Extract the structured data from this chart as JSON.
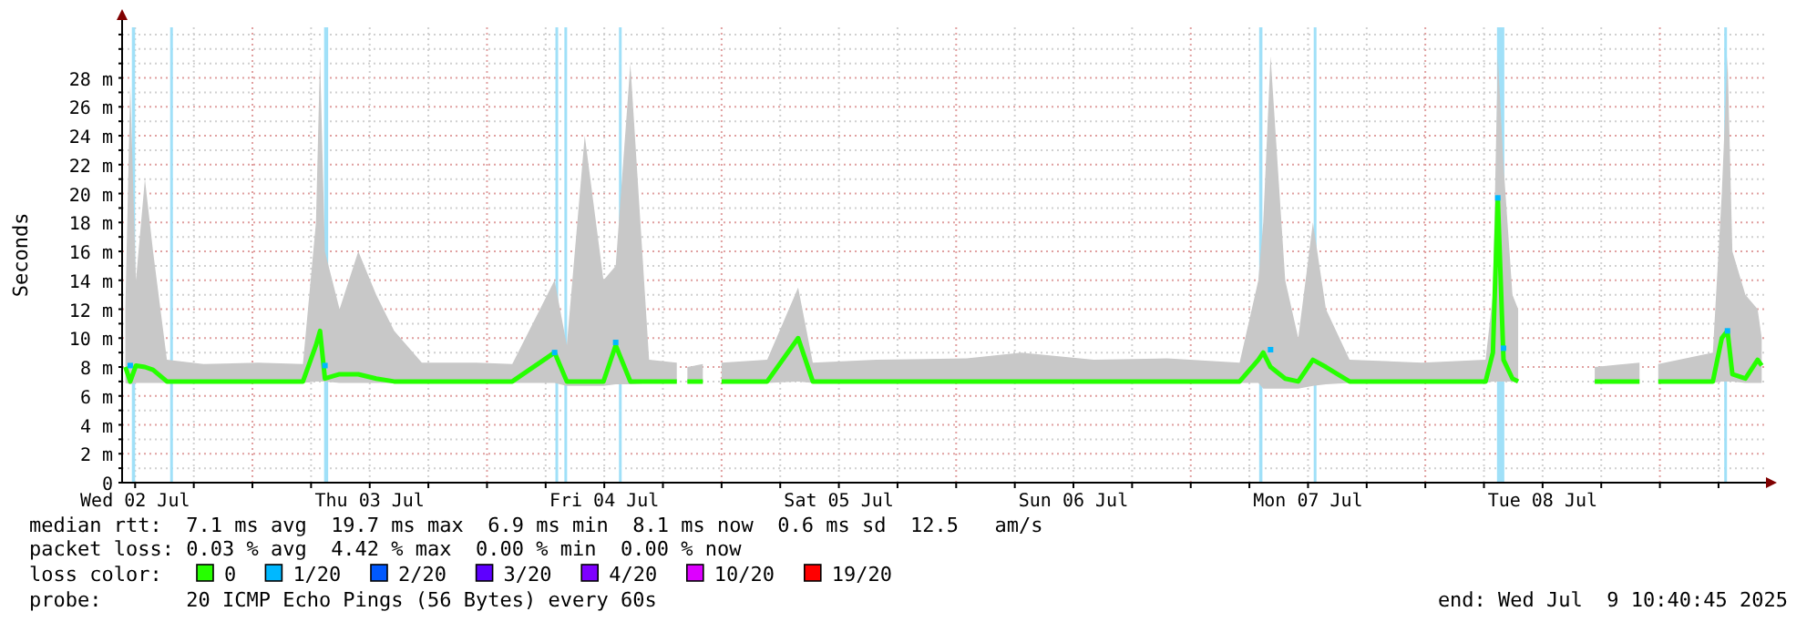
{
  "chart_data": {
    "type": "line",
    "ylabel": "Seconds",
    "legend_title": "loss color:",
    "legend": "bottom",
    "grid": true,
    "xlim": [
      "2025-07-02T10:40",
      "2025-07-09T10:40"
    ],
    "xticks": [
      {
        "value": "2025-07-02T12:00",
        "label": "Wed 02 Jul"
      },
      {
        "value": "2025-07-02T18:00",
        "label": null
      },
      {
        "value": "2025-07-03T00:00",
        "label": null
      },
      {
        "value": "2025-07-03T06:00",
        "label": null
      },
      {
        "value": "2025-07-03T12:00",
        "label": "Thu 03 Jul"
      },
      {
        "value": "2025-07-03T18:00",
        "label": null
      },
      {
        "value": "2025-07-04T00:00",
        "label": null
      },
      {
        "value": "2025-07-04T06:00",
        "label": null
      },
      {
        "value": "2025-07-04T12:00",
        "label": "Fri 04 Jul"
      },
      {
        "value": "2025-07-04T18:00",
        "label": null
      },
      {
        "value": "2025-07-05T00:00",
        "label": null
      },
      {
        "value": "2025-07-05T06:00",
        "label": null
      },
      {
        "value": "2025-07-05T12:00",
        "label": "Sat 05 Jul"
      },
      {
        "value": "2025-07-05T18:00",
        "label": null
      },
      {
        "value": "2025-07-06T00:00",
        "label": null
      },
      {
        "value": "2025-07-06T06:00",
        "label": null
      },
      {
        "value": "2025-07-06T12:00",
        "label": "Sun 06 Jul"
      },
      {
        "value": "2025-07-06T18:00",
        "label": null
      },
      {
        "value": "2025-07-07T00:00",
        "label": null
      },
      {
        "value": "2025-07-07T06:00",
        "label": null
      },
      {
        "value": "2025-07-07T12:00",
        "label": "Mon 07 Jul"
      },
      {
        "value": "2025-07-07T18:00",
        "label": null
      },
      {
        "value": "2025-07-08T00:00",
        "label": null
      },
      {
        "value": "2025-07-08T06:00",
        "label": null
      },
      {
        "value": "2025-07-08T12:00",
        "label": "Tue 08 Jul"
      },
      {
        "value": "2025-07-08T18:00",
        "label": null
      },
      {
        "value": "2025-07-09T00:00",
        "label": null
      },
      {
        "value": "2025-07-09T06:00",
        "label": null
      }
    ],
    "ylim": [
      0,
      31.5
    ],
    "yticks": [
      0,
      {
        "value": 1,
        "label": null
      },
      {
        "value": 2,
        "label": "2 m"
      },
      {
        "value": 3,
        "label": null
      },
      {
        "value": 4,
        "label": "4 m"
      },
      {
        "value": 5,
        "label": null
      },
      {
        "value": 6,
        "label": "6 m"
      },
      {
        "value": 7,
        "label": null
      },
      {
        "value": 8,
        "label": "8 m"
      },
      {
        "value": 9,
        "label": null
      },
      {
        "value": 10,
        "label": "10 m"
      },
      {
        "value": 11,
        "label": null
      },
      {
        "value": 12,
        "label": "12 m"
      },
      {
        "value": 13,
        "label": null
      },
      {
        "value": 14,
        "label": "14 m"
      },
      {
        "value": 15,
        "label": null
      },
      {
        "value": 16,
        "label": "16 m"
      },
      {
        "value": 17,
        "label": null
      },
      {
        "value": 18,
        "label": "18 m"
      },
      {
        "value": 19,
        "label": null
      },
      {
        "value": 20,
        "label": "20 m"
      },
      {
        "value": 21,
        "label": null
      },
      {
        "value": 22,
        "label": "22 m"
      },
      {
        "value": 23,
        "label": null
      },
      {
        "value": 24,
        "label": "24 m"
      },
      {
        "value": 25,
        "label": null
      },
      {
        "value": 26,
        "label": "26 m"
      },
      {
        "value": 27,
        "label": null
      },
      {
        "value": 28,
        "label": "28 m"
      },
      {
        "value": 29,
        "label": null
      },
      {
        "value": 30,
        "label": null
      },
      {
        "value": 31,
        "label": null
      }
    ],
    "series": [
      {
        "name": "0",
        "type": "line",
        "color": "#26ff00",
        "x": [
          "2025-07-02T11:00",
          "2025-07-02T11:30",
          "2025-07-02T12:05",
          "2025-07-02T13:00",
          "2025-07-02T13:50",
          "2025-07-02T15:15",
          "2025-07-02T19:00",
          "2025-07-03T00:35",
          "2025-07-03T05:10",
          "2025-07-03T06:30",
          "2025-07-03T06:55",
          "2025-07-03T07:25",
          "2025-07-03T08:55",
          "2025-07-03T10:50",
          "2025-07-03T12:40",
          "2025-07-03T14:30",
          "2025-07-03T17:20",
          "2025-07-03T22:55",
          "2025-07-04T02:35",
          "2025-07-04T06:55",
          "2025-07-04T08:10",
          "2025-07-04T10:00",
          "2025-07-04T11:55",
          "2025-07-04T13:10",
          "2025-07-04T14:40",
          "2025-07-04T16:35",
          "2025-07-04T19:25",
          "2025-07-04T19:55",
          "2025-07-04T20:30",
          "2025-07-04T22:05",
          "2025-07-04T23:00",
          "2025-07-05T00:00",
          "2025-07-05T04:40",
          "2025-07-05T07:50",
          "2025-07-05T09:20",
          "2025-07-05T15:50",
          "2025-07-06T01:05",
          "2025-07-06T06:40",
          "2025-07-06T14:05",
          "2025-07-06T21:35",
          "2025-07-07T05:00",
          "2025-07-07T06:55",
          "2025-07-07T07:25",
          "2025-07-07T08:10",
          "2025-07-07T09:40",
          "2025-07-07T11:00",
          "2025-07-07T12:30",
          "2025-07-07T13:50",
          "2025-07-07T16:15",
          "2025-07-07T23:40",
          "2025-07-08T06:10",
          "2025-07-08T06:55",
          "2025-07-08T07:25",
          "2025-07-08T08:00",
          "2025-07-08T08:55",
          "2025-07-08T09:30",
          "2025-07-08T13:00",
          "2025-07-08T17:20",
          "2025-07-08T21:55",
          "2025-07-08T23:00",
          "2025-07-08T23:50",
          "2025-07-09T05:25",
          "2025-07-09T06:20",
          "2025-07-09T06:55",
          "2025-07-09T07:25",
          "2025-07-09T08:45",
          "2025-07-09T10:00",
          "2025-07-09T10:25"
        ],
        "values": [
          8,
          7,
          8.1,
          8,
          7.8,
          7,
          7,
          7,
          7,
          9.5,
          10.5,
          7.2,
          7.5,
          7.5,
          7.2,
          7,
          7,
          7,
          7,
          9,
          7,
          7,
          7,
          9.5,
          7,
          7,
          7,
          null,
          7,
          7,
          null,
          7,
          7,
          10,
          7,
          7,
          7,
          7,
          7,
          7,
          7,
          8.5,
          9,
          8,
          7.2,
          7,
          8.5,
          8,
          7,
          7,
          7,
          9,
          19.7,
          8.5,
          7.2,
          7,
          null,
          7,
          7,
          null,
          7,
          7,
          10,
          10.5,
          7.5,
          7.2,
          8.5,
          8.1
        ],
        "lower": [
          6.9,
          6.8,
          6.9,
          6.9,
          6.9,
          6.9,
          6.9,
          6.9,
          6.9,
          7,
          7,
          7,
          6.9,
          6.9,
          6.9,
          6.9,
          6.9,
          6.9,
          6.9,
          6.9,
          6.7,
          6.7,
          6.7,
          6.8,
          6.8,
          6.9,
          6.9,
          null,
          6.9,
          6.9,
          null,
          6.9,
          6.9,
          7,
          6.9,
          6.9,
          6.9,
          6.9,
          6.9,
          6.9,
          6.9,
          6.9,
          6.5,
          6.5,
          6.5,
          6.5,
          6.7,
          6.8,
          6.9,
          6.9,
          6.9,
          7,
          7,
          7,
          7,
          6.9,
          null,
          6.9,
          6.9,
          null,
          6.9,
          6.9,
          7,
          7,
          7,
          6.9,
          6.9,
          6.9
        ],
        "upper": [
          12,
          27.5,
          14,
          21,
          16,
          8.5,
          8.2,
          8.3,
          8.2,
          18,
          29.5,
          16,
          12,
          16,
          13,
          10.5,
          8.3,
          8.3,
          8.2,
          14,
          9.5,
          24,
          14,
          15,
          29,
          8.5,
          8.3,
          null,
          8,
          8.2,
          null,
          8.3,
          8.5,
          13.5,
          8.3,
          8.5,
          8.6,
          9,
          8.5,
          8.6,
          8.3,
          14,
          18,
          29.5,
          14,
          10,
          18,
          12,
          8.5,
          8.3,
          8.5,
          13,
          29.5,
          22,
          13,
          12,
          null,
          8,
          8.3,
          null,
          8.2,
          9,
          20,
          29.5,
          16,
          13,
          12,
          10
        ]
      },
      {
        "name": "1/20",
        "type": "scatter",
        "marker": "square",
        "color": "#00b8ff",
        "x": [
          "2025-07-02T11:30",
          "2025-07-03T07:25",
          "2025-07-04T06:55",
          "2025-07-04T13:10",
          "2025-07-07T08:10",
          "2025-07-08T07:25",
          "2025-07-08T08:00",
          "2025-07-09T06:55"
        ],
        "values": [
          8.1,
          8.1,
          9,
          9.7,
          9.2,
          19.7,
          9.3,
          10.5
        ]
      },
      {
        "name": "2/20",
        "type": "scatter",
        "marker": "square",
        "color": "#0059ff"
      },
      {
        "name": "3/20",
        "type": "scatter",
        "marker": "square",
        "color": "#5e00ff"
      },
      {
        "name": "4/20",
        "type": "scatter",
        "marker": "square",
        "color": "#7e00ff"
      },
      {
        "name": "10/20",
        "type": "scatter",
        "marker": "square",
        "color": "#dd00ff"
      },
      {
        "name": "19/20",
        "type": "scatter",
        "marker": "square",
        "color": "#ff0000"
      }
    ],
    "bands": [
      {
        "axis": "x",
        "from": "2025-07-02T11:40",
        "to": "2025-07-02T12:00",
        "color": "#a0e0f8"
      },
      {
        "axis": "x",
        "from": "2025-07-02T15:35",
        "to": "2025-07-02T15:45",
        "color": "#a0e0f8"
      },
      {
        "axis": "x",
        "from": "2025-07-03T07:20",
        "to": "2025-07-03T07:45",
        "color": "#a0e0f8"
      },
      {
        "axis": "x",
        "from": "2025-07-04T07:00",
        "to": "2025-07-04T07:10",
        "color": "#a0e0f8"
      },
      {
        "axis": "x",
        "from": "2025-07-04T07:55",
        "to": "2025-07-04T08:05",
        "color": "#a0e0f8"
      },
      {
        "axis": "x",
        "from": "2025-07-04T13:30",
        "to": "2025-07-04T13:40",
        "color": "#a0e0f8"
      },
      {
        "axis": "x",
        "from": "2025-07-07T07:00",
        "to": "2025-07-07T07:20",
        "color": "#a0e0f8"
      },
      {
        "axis": "x",
        "from": "2025-07-07T12:35",
        "to": "2025-07-07T12:45",
        "color": "#a0e0f8"
      },
      {
        "axis": "x",
        "from": "2025-07-08T07:20",
        "to": "2025-07-08T08:05",
        "color": "#a0e0f8"
      },
      {
        "axis": "x",
        "from": "2025-07-09T06:35",
        "to": "2025-07-09T06:45",
        "color": "#a0e0f8"
      }
    ],
    "annotations": [
      "median rtt:  7.1 ms avg  19.7 ms max  6.9 ms min  8.1 ms now  0.6 ms sd  12.5   am/s",
      "packet loss: 0.03 % avg  4.42 % max  0.00 % min  0.00 % now",
      "probe:       20 ICMP Echo Pings (56 Bytes) every 60s",
      "end: Wed Jul  9 10:40:45 2025"
    ]
  }
}
